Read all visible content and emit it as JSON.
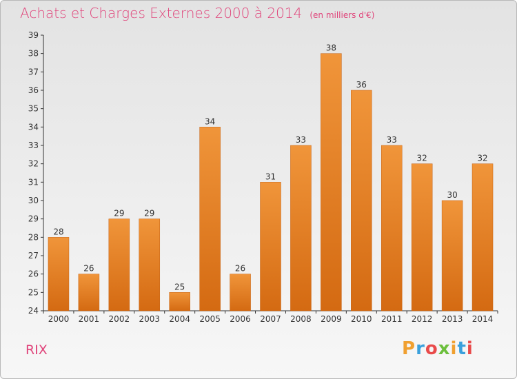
{
  "chart_data": {
    "type": "bar",
    "title": "Achats et Charges Externes 2000 à 2014",
    "subtitle": "(en milliers d'€)",
    "categories": [
      "2000",
      "2001",
      "2002",
      "2003",
      "2004",
      "2005",
      "2006",
      "2007",
      "2008",
      "2009",
      "2010",
      "2011",
      "2012",
      "2013",
      "2014"
    ],
    "values": [
      28,
      26,
      29,
      29,
      25,
      34,
      26,
      31,
      33,
      38,
      36,
      33,
      32,
      30,
      32
    ],
    "ylim": [
      24,
      39
    ],
    "yticks": [
      24,
      25,
      26,
      27,
      28,
      29,
      30,
      31,
      32,
      33,
      34,
      35,
      36,
      37,
      38,
      39
    ],
    "grid": false,
    "bar_color": "#f0953a",
    "bar_color_dark": "#d46a12"
  },
  "footer": {
    "commune": "RIX",
    "logo": "Proxiti"
  },
  "colors": {
    "accent": "#e0457b",
    "logo": [
      "#f0a030",
      "#3aa0dc",
      "#e94a4a",
      "#6cbf3c"
    ]
  }
}
